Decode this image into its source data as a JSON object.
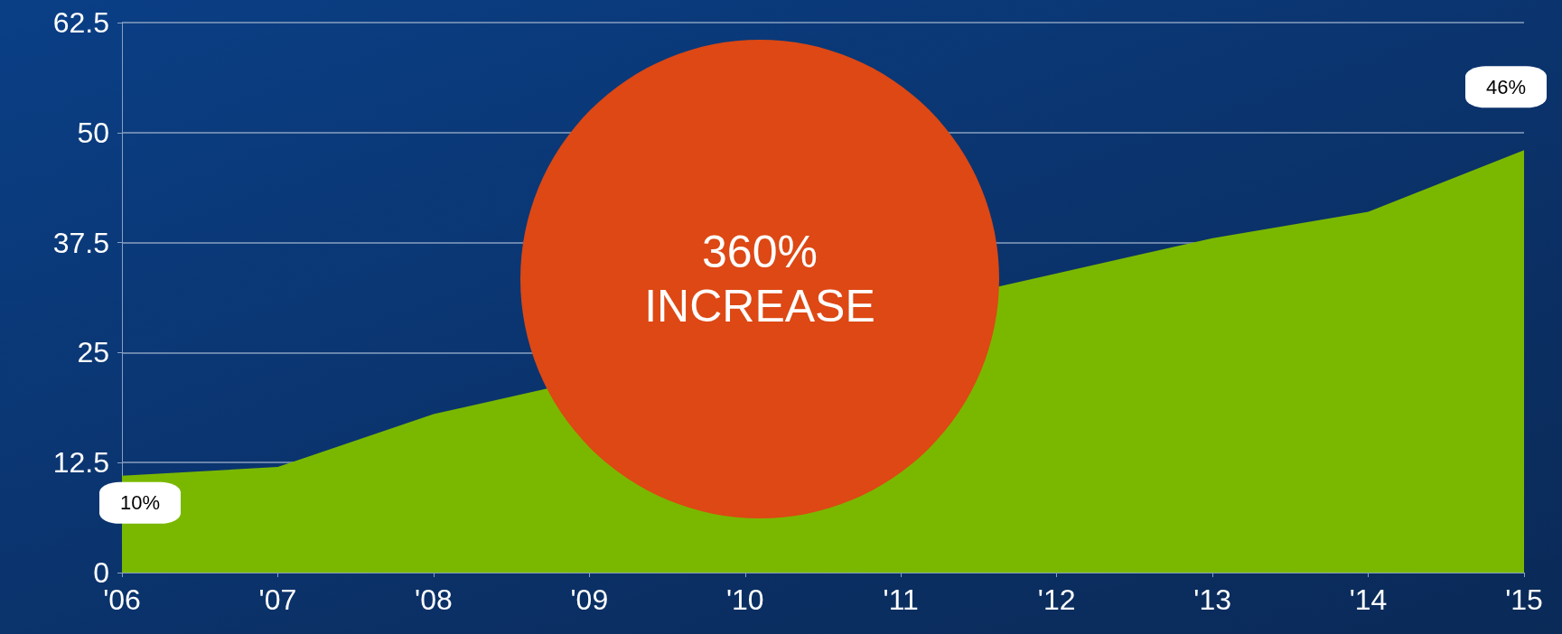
{
  "chart_data": {
    "type": "area",
    "categories": [
      "'06",
      "'07",
      "'08",
      "'09",
      "'10",
      "'11",
      "'12",
      "'13",
      "'14",
      "'15"
    ],
    "series": [
      {
        "color": "#7ab800",
        "values": [
          11,
          12,
          18,
          null,
          null,
          null,
          34,
          38,
          41,
          48
        ]
      }
    ],
    "ylim": [
      0,
      62.5
    ],
    "yticks": [
      0,
      12.5,
      25,
      37.5,
      50,
      62.5
    ],
    "grid": "y",
    "marker": "none",
    "annotations": [
      {
        "text": "10%",
        "x": "'06",
        "y": 11
      },
      {
        "text": "46%",
        "x": "'15",
        "y": 48
      },
      "360% INCREASE"
    ]
  }
}
